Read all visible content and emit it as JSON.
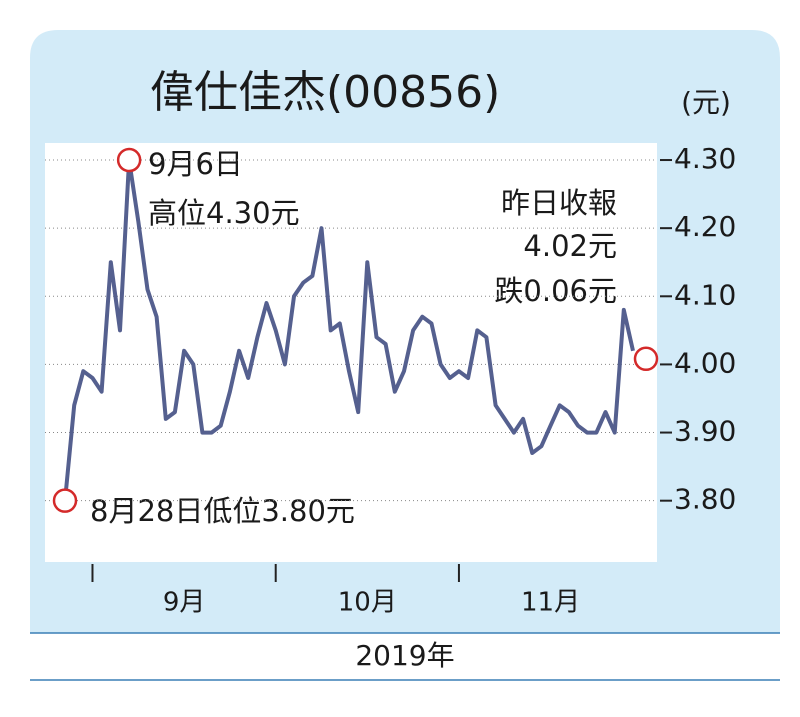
{
  "chart_data": {
    "type": "line",
    "title": "偉仕佳杰(00856)",
    "y_unit": "(元)",
    "x_label": "2019年",
    "categories": [
      null,
      null,
      null,
      null,
      null,
      null,
      null,
      null,
      null,
      null,
      null,
      null,
      null,
      "9月",
      null,
      null,
      null,
      null,
      null,
      null,
      null,
      null,
      null,
      null,
      null,
      null,
      null,
      null,
      null,
      null,
      null,
      null,
      null,
      "10月",
      null,
      null,
      null,
      null,
      null,
      null,
      null,
      null,
      null,
      null,
      null,
      null,
      null,
      null,
      null,
      null,
      null,
      null,
      null,
      "11月",
      null,
      null,
      null,
      null,
      null,
      null,
      null,
      null,
      null
    ],
    "values": [
      3.8,
      3.94,
      3.99,
      3.98,
      3.96,
      4.15,
      4.05,
      4.3,
      4.21,
      4.11,
      4.07,
      3.92,
      3.93,
      4.02,
      4.0,
      3.9,
      3.9,
      3.91,
      3.96,
      4.02,
      3.98,
      4.04,
      4.09,
      4.05,
      4.0,
      4.1,
      4.12,
      4.13,
      4.2,
      4.05,
      4.06,
      3.99,
      3.93,
      4.15,
      4.04,
      4.03,
      3.96,
      3.99,
      4.05,
      4.07,
      4.06,
      4.0,
      3.98,
      3.99,
      3.98,
      4.05,
      4.04,
      3.94,
      3.92,
      3.9,
      3.92,
      3.87,
      3.88,
      3.91,
      3.94,
      3.93,
      3.91,
      3.9,
      3.9,
      3.93,
      3.9,
      4.08,
      4.02
    ],
    "color": "#55608f",
    "ylim": [
      3.71,
      4.325
    ],
    "yticks": [
      {
        "value": 3.8,
        "label": "3.80"
      },
      {
        "value": 3.9,
        "label": "3.90"
      },
      {
        "value": 4.0,
        "label": "4.00"
      },
      {
        "value": 4.1,
        "label": "4.10"
      },
      {
        "value": 4.2,
        "label": "4.20"
      },
      {
        "value": 4.3,
        "label": "4.30"
      }
    ],
    "grid": true,
    "annotations": [
      {
        "lines": [
          "9月6日",
          "高位4.30元"
        ]
      },
      {
        "lines": [
          "8月28日低位3.80元"
        ]
      },
      {
        "lines": [
          "昨日收報",
          "4.02元",
          "跌0.06元"
        ]
      }
    ]
  }
}
